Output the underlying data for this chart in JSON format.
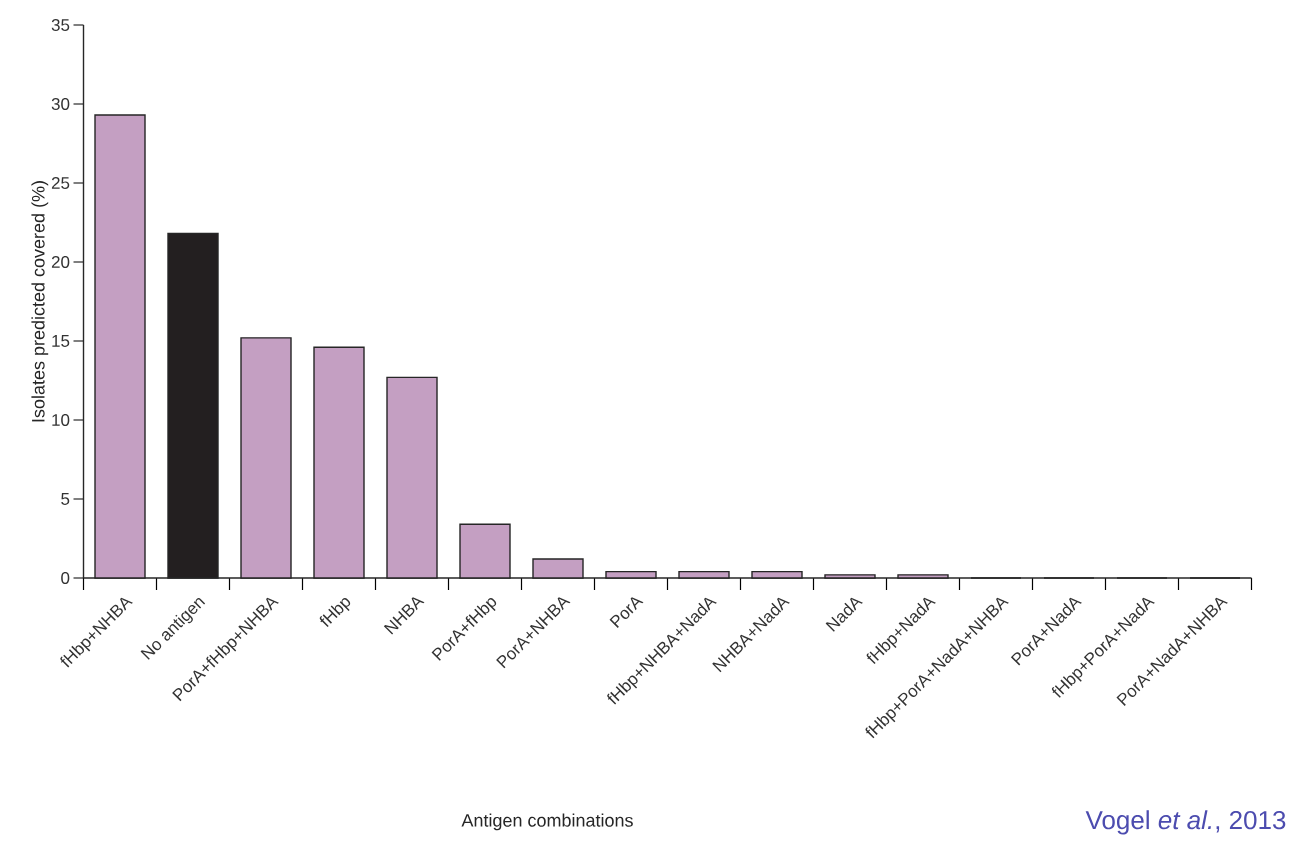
{
  "chart_data": {
    "type": "bar",
    "xlabel": "Antigen combinations",
    "ylabel": "Isolates predicted covered (%)",
    "categories": [
      "fHbp+NHBA",
      "No antigen",
      "PorA+fHbp+NHBA",
      "fHbp",
      "NHBA",
      "PorA+fHbp",
      "PorA+NHBA",
      "PorA",
      "fHbp+NHBA+NadA",
      "NHBA+NadA",
      "NadA",
      "fHbp+NadA",
      "fHbp+PorA+NadA+NHBA",
      "PorA+NadA",
      "fHbp+PorA+NadA",
      "PorA+NadA+NHBA"
    ],
    "values": [
      29.3,
      21.8,
      15.2,
      14.6,
      12.7,
      3.4,
      1.2,
      0.4,
      0.4,
      0.4,
      0.2,
      0.2,
      0,
      0,
      0,
      0
    ],
    "colors": [
      "#c49fc2",
      "#231f20",
      "#c49fc2",
      "#c49fc2",
      "#c49fc2",
      "#c49fc2",
      "#c49fc2",
      "#c49fc2",
      "#c49fc2",
      "#c49fc2",
      "#c49fc2",
      "#c49fc2",
      "#c49fc2",
      "#c49fc2",
      "#c49fc2",
      "#c49fc2"
    ],
    "ylim": [
      0,
      35
    ],
    "yticks": [
      0,
      5,
      10,
      15,
      20,
      25,
      30,
      35
    ],
    "annotations": [
      "Vogel *et al.*, 2013"
    ]
  }
}
